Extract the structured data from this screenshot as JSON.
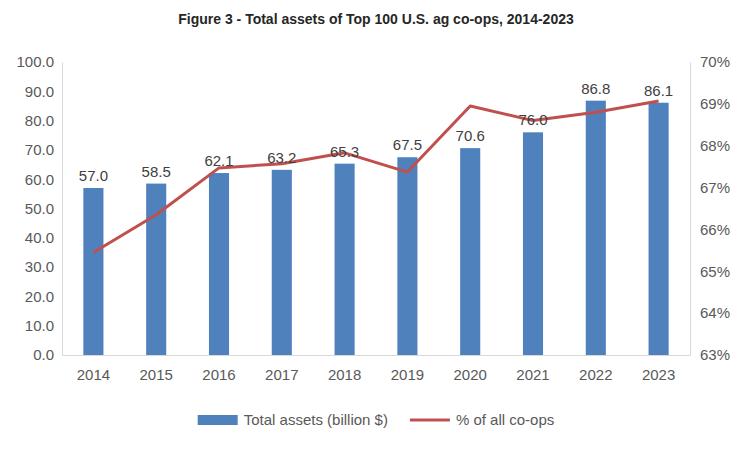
{
  "chart_data": {
    "type": "bar",
    "title": "Figure 3 - Total assets of Top 100 U.S. ag co-ops, 2014-2023",
    "categories": [
      "2014",
      "2015",
      "2016",
      "2017",
      "2018",
      "2019",
      "2020",
      "2021",
      "2022",
      "2023"
    ],
    "series": [
      {
        "name": "Total assets (billion $)",
        "type": "bar",
        "color": "#4f81bd",
        "data_labels": true,
        "values": [
          57.0,
          58.5,
          62.1,
          63.2,
          65.3,
          67.5,
          70.6,
          76.0,
          86.8,
          86.1
        ],
        "value_labels": [
          "57.0",
          "58.5",
          "62.1",
          "63.2",
          "65.3",
          "67.5",
          "70.6",
          "76.0",
          "86.8",
          "86.1"
        ]
      },
      {
        "name": "% of all co-ops",
        "type": "line",
        "color": "#c0504d",
        "axis": "y2",
        "line_style": "solid",
        "values": [
          65.45,
          66.35,
          67.47,
          67.57,
          67.83,
          67.37,
          68.95,
          68.6,
          68.8,
          69.07
        ]
      }
    ],
    "ylim": [
      0,
      100
    ],
    "yticks": [
      {
        "value": 0,
        "label": "0.0"
      },
      {
        "value": 10,
        "label": "10.0"
      },
      {
        "value": 20,
        "label": "20.0"
      },
      {
        "value": 30,
        "label": "30.0"
      },
      {
        "value": 40,
        "label": "40.0"
      },
      {
        "value": 50,
        "label": "50.0"
      },
      {
        "value": 60,
        "label": "60.0"
      },
      {
        "value": 70,
        "label": "70.0"
      },
      {
        "value": 80,
        "label": "80.0"
      },
      {
        "value": 90,
        "label": "90.0"
      },
      {
        "value": 100,
        "label": "100.0"
      }
    ],
    "y2lim": [
      63,
      70
    ],
    "y2ticks": [
      {
        "value": 63,
        "label": "63%"
      },
      {
        "value": 64,
        "label": "64%"
      },
      {
        "value": 65,
        "label": "65%"
      },
      {
        "value": 66,
        "label": "66%"
      },
      {
        "value": 67,
        "label": "67%"
      },
      {
        "value": 68,
        "label": "68%"
      },
      {
        "value": 69,
        "label": "69%"
      },
      {
        "value": 70,
        "label": "70%"
      }
    ],
    "grid": false,
    "legend": "bottom"
  }
}
